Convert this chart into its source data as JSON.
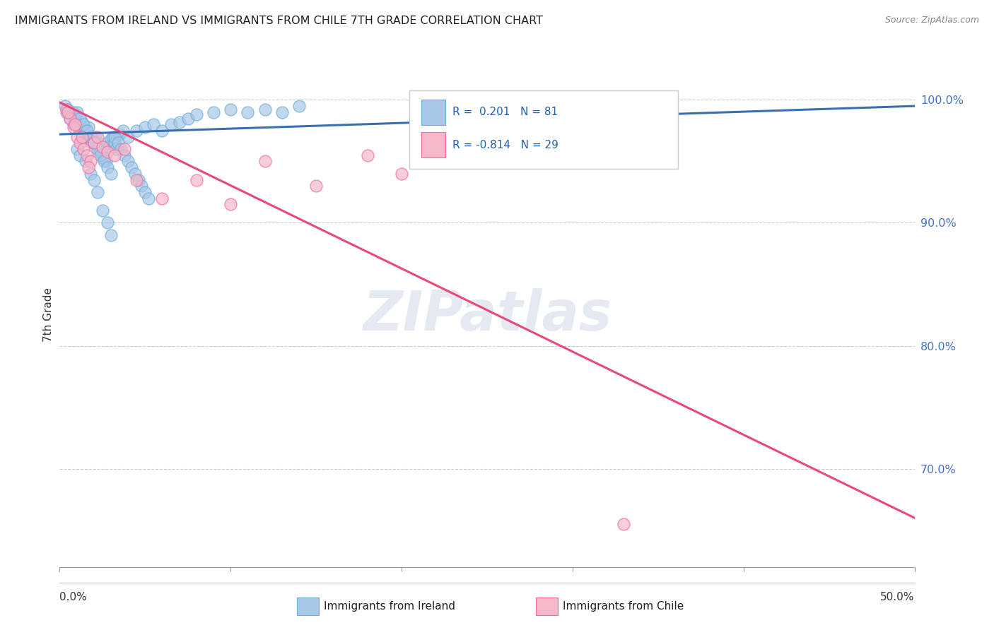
{
  "title": "IMMIGRANTS FROM IRELAND VS IMMIGRANTS FROM CHILE 7TH GRADE CORRELATION CHART",
  "source": "Source: ZipAtlas.com",
  "ylabel": "7th Grade",
  "xlim": [
    0.0,
    50.0
  ],
  "ylim": [
    62.0,
    103.0
  ],
  "ytick_values": [
    100.0,
    90.0,
    80.0,
    70.0
  ],
  "watermark": "ZIPatlas",
  "legend_ireland_r": "0.201",
  "legend_ireland_n": "81",
  "legend_chile_r": "-0.814",
  "legend_chile_n": "29",
  "ireland_color": "#a8c8e8",
  "chile_color": "#f4b8c8",
  "ireland_edge_color": "#6baed6",
  "chile_edge_color": "#f768a1",
  "ireland_line_color": "#3a6faf",
  "chile_line_color": "#e8487a",
  "ireland_scatter_x": [
    0.3,
    0.5,
    0.7,
    0.8,
    0.9,
    1.0,
    1.1,
    1.2,
    1.3,
    1.4,
    1.5,
    1.6,
    1.7,
    1.8,
    1.9,
    2.0,
    2.1,
    2.2,
    2.3,
    2.4,
    2.5,
    2.6,
    2.7,
    2.8,
    2.9,
    3.0,
    3.1,
    3.2,
    3.3,
    3.5,
    3.7,
    4.0,
    4.5,
    5.0,
    5.5,
    6.0,
    6.5,
    7.0,
    7.5,
    8.0,
    9.0,
    10.0,
    11.0,
    12.0,
    13.0,
    14.0,
    1.0,
    1.2,
    1.5,
    1.8,
    2.0,
    2.2,
    2.5,
    2.8,
    3.0,
    0.4,
    0.6,
    0.8,
    1.0,
    1.2,
    1.4,
    1.6,
    1.8,
    2.0,
    2.2,
    2.4,
    2.6,
    2.8,
    3.0,
    3.2,
    3.4,
    3.6,
    3.8,
    4.0,
    4.2,
    4.4,
    4.6,
    4.8,
    5.0,
    5.2
  ],
  "ireland_scatter_y": [
    99.5,
    99.2,
    98.8,
    99.0,
    98.5,
    98.0,
    97.8,
    97.5,
    98.2,
    97.0,
    97.5,
    97.2,
    97.8,
    97.0,
    96.5,
    96.8,
    97.0,
    96.5,
    96.0,
    95.8,
    95.5,
    95.2,
    95.0,
    96.5,
    96.2,
    96.8,
    97.0,
    96.5,
    96.0,
    97.2,
    97.5,
    97.0,
    97.5,
    97.8,
    98.0,
    97.5,
    98.0,
    98.2,
    98.5,
    98.8,
    99.0,
    99.2,
    99.0,
    99.2,
    99.0,
    99.5,
    96.0,
    95.5,
    95.0,
    94.0,
    93.5,
    92.5,
    91.0,
    90.0,
    89.0,
    99.0,
    98.5,
    98.0,
    99.0,
    98.5,
    98.0,
    97.5,
    97.0,
    96.5,
    96.0,
    95.5,
    95.0,
    94.5,
    94.0,
    97.0,
    96.5,
    96.0,
    95.5,
    95.0,
    94.5,
    94.0,
    93.5,
    93.0,
    92.5,
    92.0
  ],
  "chile_scatter_x": [
    0.4,
    0.6,
    0.8,
    1.0,
    1.2,
    1.4,
    1.6,
    1.8,
    2.0,
    2.2,
    2.5,
    2.8,
    3.2,
    3.8,
    4.5,
    6.0,
    8.0,
    10.0,
    12.0,
    15.0,
    18.0,
    20.0,
    25.0,
    30.0,
    33.0,
    0.5,
    0.9,
    1.3,
    1.7
  ],
  "chile_scatter_y": [
    99.2,
    98.5,
    97.8,
    97.0,
    96.5,
    96.0,
    95.5,
    95.0,
    96.5,
    97.0,
    96.2,
    95.8,
    95.5,
    96.0,
    93.5,
    92.0,
    93.5,
    91.5,
    95.0,
    93.0,
    95.5,
    94.0,
    97.0,
    96.5,
    65.5,
    99.0,
    98.0,
    97.0,
    94.5
  ],
  "ireland_trendline_x": [
    0.0,
    50.0
  ],
  "ireland_trendline_y": [
    97.2,
    99.5
  ],
  "chile_trendline_x": [
    0.0,
    50.0
  ],
  "chile_trendline_y": [
    99.8,
    66.0
  ]
}
